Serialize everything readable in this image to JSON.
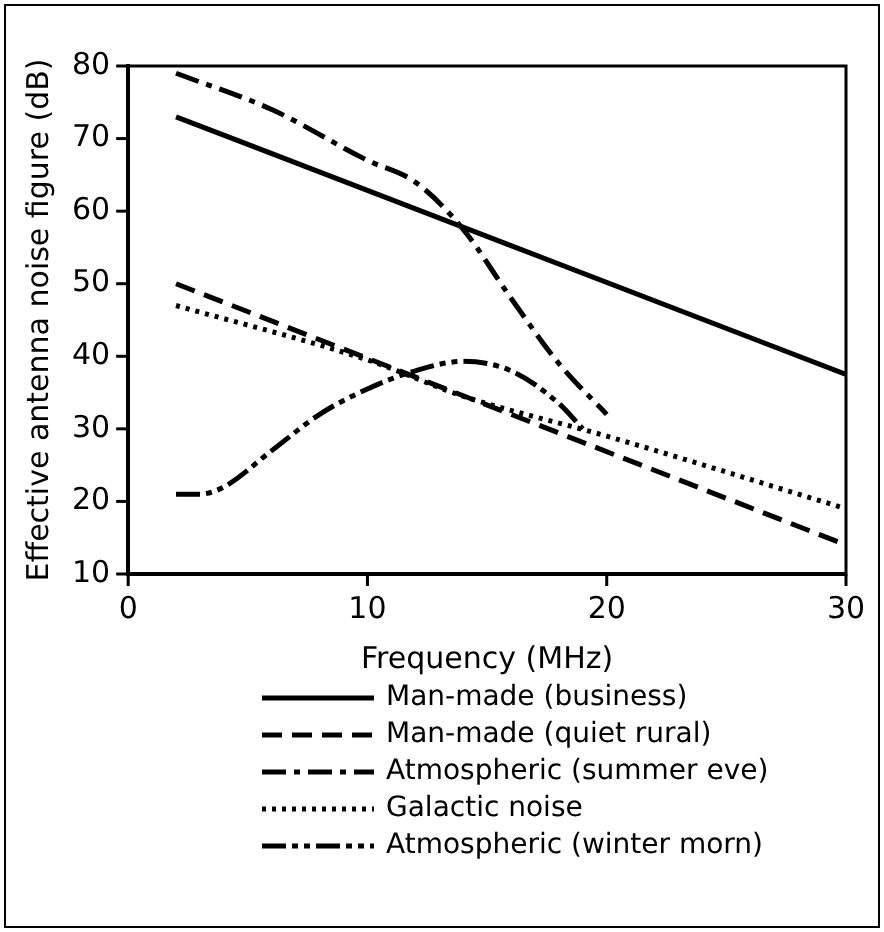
{
  "chart_data": {
    "type": "line",
    "xlabel": "Frequency (MHz)",
    "ylabel": "Effective antenna noise figure (dB)",
    "xlim": [
      0,
      30
    ],
    "xticks": [
      0,
      10,
      20,
      30
    ],
    "ylim": [
      10,
      80
    ],
    "yticks": [
      10,
      20,
      30,
      40,
      50,
      60,
      70,
      80
    ],
    "grid": false,
    "legend": "bottom",
    "marker": "none",
    "series": [
      {
        "name": "Man-made (business)",
        "color": "#000000",
        "line_style": "solid",
        "x": [
          2,
          30
        ],
        "values": [
          73,
          37.5
        ]
      },
      {
        "name": "Man-made (quiet rural)",
        "color": "#000000",
        "line_style": "dashed",
        "x": [
          2,
          30
        ],
        "values": [
          50,
          14
        ]
      },
      {
        "name": "Atmospheric (summer eve)",
        "color": "#000000",
        "line_style": "dashdot",
        "x": [
          2,
          6,
          10,
          12,
          14,
          16,
          18,
          20
        ],
        "values": [
          79,
          74,
          67,
          64,
          57.5,
          48,
          39,
          32
        ]
      },
      {
        "name": "Galactic noise",
        "color": "#000000",
        "line_style": "dotted",
        "x": [
          2,
          10,
          14,
          20,
          30
        ],
        "values": [
          47,
          39.5,
          34.5,
          29,
          19
        ]
      },
      {
        "name": "Atmospheric (winter morn)",
        "color": "#000000",
        "line_style": "dashdotdot",
        "x": [
          2,
          3,
          4,
          6,
          8,
          10,
          12,
          14,
          16,
          18,
          19
        ],
        "values": [
          21,
          21,
          22,
          27,
          32,
          35.5,
          38,
          39.3,
          38,
          33.5,
          30
        ]
      }
    ]
  }
}
